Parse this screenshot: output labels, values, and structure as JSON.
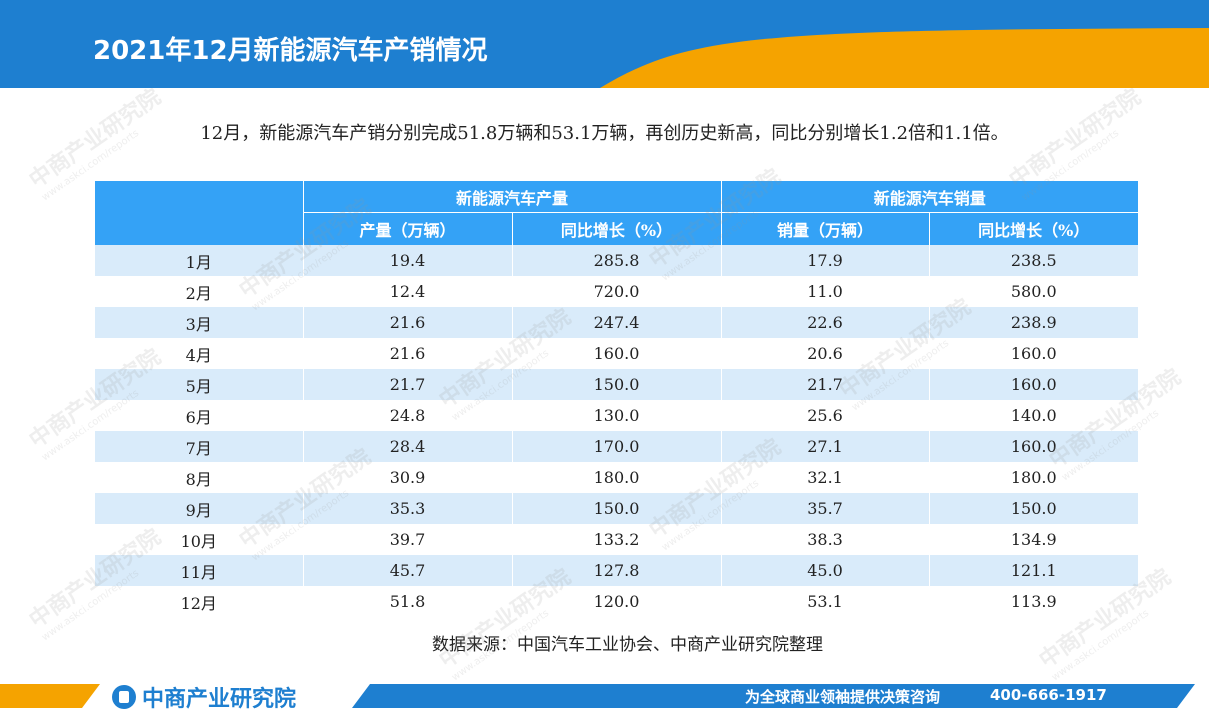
{
  "header": {
    "title": "2021年12月新能源汽车产销情况"
  },
  "intro": "12月，新能源汽车产销分别完成51.8万辆和53.1万辆，再创历史新高，同比分别增长1.2倍和1.1倍。",
  "table": {
    "group_headers": [
      "新能源汽车产量",
      "新能源汽车销量"
    ],
    "sub_headers": [
      "产量（万辆）",
      "同比增长（%）",
      "销量（万辆）",
      "同比增长（%）"
    ],
    "rows": [
      {
        "month": "1月",
        "prod": "19.4",
        "prod_yoy": "285.8",
        "sales": "17.9",
        "sales_yoy": "238.5"
      },
      {
        "month": "2月",
        "prod": "12.4",
        "prod_yoy": "720.0",
        "sales": "11.0",
        "sales_yoy": "580.0"
      },
      {
        "month": "3月",
        "prod": "21.6",
        "prod_yoy": "247.4",
        "sales": "22.6",
        "sales_yoy": "238.9"
      },
      {
        "month": "4月",
        "prod": "21.6",
        "prod_yoy": "160.0",
        "sales": "20.6",
        "sales_yoy": "160.0"
      },
      {
        "month": "5月",
        "prod": "21.7",
        "prod_yoy": "150.0",
        "sales": "21.7",
        "sales_yoy": "160.0"
      },
      {
        "month": "6月",
        "prod": "24.8",
        "prod_yoy": "130.0",
        "sales": "25.6",
        "sales_yoy": "140.0"
      },
      {
        "month": "7月",
        "prod": "28.4",
        "prod_yoy": "170.0",
        "sales": "27.1",
        "sales_yoy": "160.0"
      },
      {
        "month": "8月",
        "prod": "30.9",
        "prod_yoy": "180.0",
        "sales": "32.1",
        "sales_yoy": "180.0"
      },
      {
        "month": "9月",
        "prod": "35.3",
        "prod_yoy": "150.0",
        "sales": "35.7",
        "sales_yoy": "150.0"
      },
      {
        "month": "10月",
        "prod": "39.7",
        "prod_yoy": "133.2",
        "sales": "38.3",
        "sales_yoy": "134.9"
      },
      {
        "month": "11月",
        "prod": "45.7",
        "prod_yoy": "127.8",
        "sales": "45.0",
        "sales_yoy": "121.1"
      },
      {
        "month": "12月",
        "prod": "51.8",
        "prod_yoy": "120.0",
        "sales": "53.1",
        "sales_yoy": "113.9"
      }
    ]
  },
  "source": "数据来源：中国汽车工业协会、中商产业研究院整理",
  "watermark": {
    "brand": "中商产业研究院",
    "url": "www.askci.com/reports"
  },
  "footer": {
    "logo_text": "中商产业研究院",
    "tagline": "为全球商业领袖提供决策咨询",
    "phone": "400-666-1917"
  },
  "colors": {
    "primary_blue": "#1e7fd0",
    "header_blue": "#34a2f6",
    "accent_orange": "#f5a300",
    "row_stripe": "#d9ebfa"
  }
}
